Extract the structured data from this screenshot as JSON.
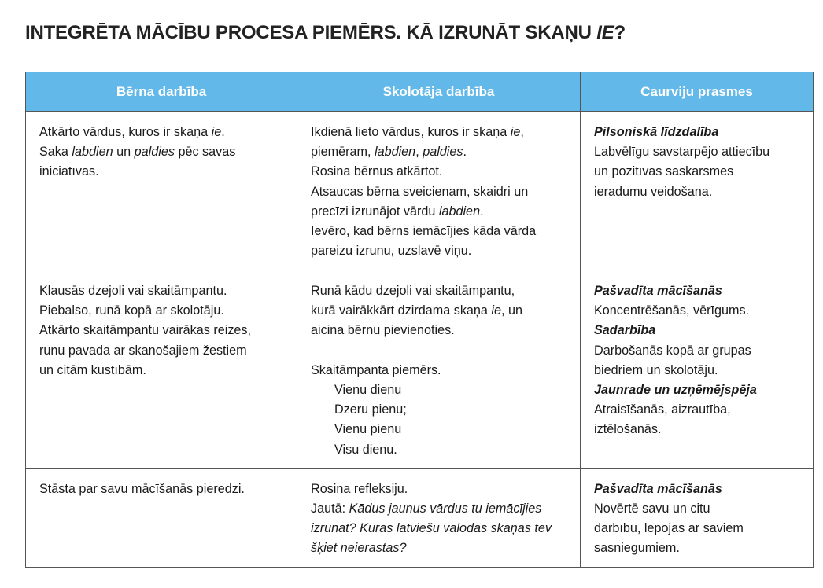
{
  "title": {
    "text": "INTEGRĒTA MĀCĪBU PROCESA PIEMĒRS. KĀ IZRUNĀT SKAŅU ",
    "italic": "IE",
    "end": "?"
  },
  "headers": [
    "Bērna darbība",
    "Skolotāja darbība",
    "Caurviju prasmes"
  ],
  "header_color": "#62b8e8",
  "rows": [
    [
      [
        [
          {
            "t": "Atkārto vārdus, kuros ir skaņa "
          },
          {
            "t": "ie",
            "s": "i"
          },
          {
            "t": "."
          }
        ],
        [
          {
            "t": "Saka "
          },
          {
            "t": "labdien",
            "s": "i"
          },
          {
            "t": " un "
          },
          {
            "t": "paldies",
            "s": "i"
          },
          {
            "t": " pēc savas"
          }
        ],
        [
          {
            "t": "iniciatīvas."
          }
        ]
      ],
      [
        [
          {
            "t": "Ikdienā lieto vārdus, kuros ir skaņa "
          },
          {
            "t": "ie",
            "s": "i"
          },
          {
            "t": ","
          }
        ],
        [
          {
            "t": "piemēram, "
          },
          {
            "t": "labdien",
            "s": "i"
          },
          {
            "t": ", "
          },
          {
            "t": "paldies",
            "s": "i"
          },
          {
            "t": "."
          }
        ],
        [
          {
            "t": "Rosina bērnus atkārtot."
          }
        ],
        [
          {
            "t": "Atsaucas bērna sveicienam, skaidri un"
          }
        ],
        [
          {
            "t": "precīzi izrunājot vārdu "
          },
          {
            "t": "labdien",
            "s": "i"
          },
          {
            "t": "."
          }
        ],
        [
          {
            "t": "Ievēro, kad bērns iemācījies kāda vārda"
          }
        ],
        [
          {
            "t": "pareizu izrunu, uzslavē viņu."
          }
        ]
      ],
      [
        [
          {
            "t": "Pilsoniskā līdzdalība",
            "s": "bi"
          }
        ],
        [
          {
            "t": "Labvēlīgu savstarpējo attiecību"
          }
        ],
        [
          {
            "t": "un pozitīvas saskarsmes"
          }
        ],
        [
          {
            "t": "ieradumu veidošana."
          }
        ]
      ]
    ],
    [
      [
        [
          {
            "t": "Klausās dzejoli vai skaitāmpantu."
          }
        ],
        [
          {
            "t": "Piebalso, runā kopā ar skolotāju."
          }
        ],
        [
          {
            "t": "Atkārto skaitāmpantu vairākas reizes,"
          }
        ],
        [
          {
            "t": "runu pavada ar skanošajiem žestiem"
          }
        ],
        [
          {
            "t": "un citām kustībām."
          }
        ]
      ],
      [
        [
          {
            "t": "Runā kādu dzejoli vai skaitāmpantu,"
          }
        ],
        [
          {
            "t": "kurā vairākkārt dzirdama skaņa "
          },
          {
            "t": "ie",
            "s": "i"
          },
          {
            "t": ", un"
          }
        ],
        [
          {
            "t": "aicina bērnu pievienoties."
          }
        ],
        [],
        [
          {
            "t": "Skaitāmpanta piemērs."
          }
        ],
        [
          {
            "t": "Vienu dienu",
            "indent": true
          }
        ],
        [
          {
            "t": "Dzeru pienu;",
            "indent": true
          }
        ],
        [
          {
            "t": "Vienu pienu",
            "indent": true
          }
        ],
        [
          {
            "t": "Visu dienu.",
            "indent": true
          }
        ]
      ],
      [
        [
          {
            "t": "Pašvadīta mācīšanās",
            "s": "bi"
          }
        ],
        [
          {
            "t": "Koncentrēšanās, vērīgums."
          }
        ],
        [
          {
            "t": "Sadarbība",
            "s": "bi"
          }
        ],
        [
          {
            "t": "Darbošanās kopā ar grupas"
          }
        ],
        [
          {
            "t": "biedriem un skolotāju."
          }
        ],
        [
          {
            "t": "Jaunrade un uzņēmējspēja",
            "s": "bi"
          }
        ],
        [
          {
            "t": "Atraisīšanās, aizrautība,"
          }
        ],
        [
          {
            "t": "iztēlošanās."
          }
        ]
      ]
    ],
    [
      [
        [
          {
            "t": "Stāsta par savu mācīšanās pieredzi."
          }
        ]
      ],
      [
        [
          {
            "t": "Rosina refleksiju."
          }
        ],
        [
          {
            "t": "Jautā: "
          },
          {
            "t": "Kādus jaunus vārdus tu iemācījies",
            "s": "i"
          }
        ],
        [
          {
            "t": "izrunāt? Kuras latviešu valodas skaņas tev",
            "s": "i"
          }
        ],
        [
          {
            "t": "šķiet neierastas?",
            "s": "i"
          }
        ]
      ],
      [
        [
          {
            "t": "Pašvadīta mācīšanās",
            "s": "bi"
          }
        ],
        [
          {
            "t": "Novērtē savu un citu"
          }
        ],
        [
          {
            "t": "darbību, lepojas ar saviem"
          }
        ],
        [
          {
            "t": "sasniegumiem."
          }
        ]
      ]
    ]
  ]
}
